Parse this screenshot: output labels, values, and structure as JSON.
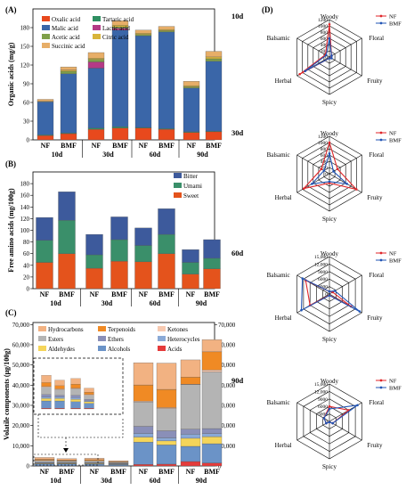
{
  "panel_labels": {
    "a": "(A)",
    "b": "(B)",
    "c": "(C)",
    "d": "(D)"
  },
  "colors": {
    "oxalic": "#e8491d",
    "malic": "#3a66a8",
    "acetic": "#7fa04a",
    "succinic": "#e7ae68",
    "tartaric": "#2f8f62",
    "lactic": "#b43a86",
    "citric": "#d8b43a",
    "bitter": "#3d5a9c",
    "umami": "#3a8f6a",
    "sweet": "#e4531c",
    "hydrocarbons": "#f2b282",
    "terpenoids": "#f08a24",
    "ketones": "#f7c9b0",
    "esters": "#b4b4b4",
    "ethers": "#8a8fb8",
    "heterocycles": "#8aa9d6",
    "aldehydes": "#f5d55a",
    "alcohols": "#6b93c7",
    "acids": "#e53b3b",
    "nf": "#e0262a",
    "bmf": "#2255b5"
  },
  "chart_data": [
    {
      "type": "bar",
      "stacked": true,
      "ylabel": "Organic acids (mg/g)",
      "ylim": [
        0,
        210
      ],
      "yticks": [
        0,
        30,
        60,
        90,
        120,
        150,
        180
      ],
      "categories": [
        "NF",
        "BMF",
        "NF",
        "BMF",
        "NF",
        "BMF",
        "NF",
        "BMF"
      ],
      "groups": [
        "10d",
        "30d",
        "60d",
        "90d"
      ],
      "legend": [
        "Oxalic acid",
        "Malic acid",
        "Acetic acid",
        "Succinic acid",
        "Tartaric acid",
        "Lactic acid",
        "Citric acid"
      ],
      "series": [
        {
          "name": "Oxalic acid",
          "values": [
            7,
            10,
            17,
            19,
            19,
            17,
            12,
            13
          ]
        },
        {
          "name": "Tartaric acid",
          "values": [
            1,
            1,
            2,
            2,
            1,
            1,
            1,
            1
          ]
        },
        {
          "name": "Malic acid",
          "values": [
            53,
            95,
            96,
            155,
            147,
            155,
            70,
            112
          ]
        },
        {
          "name": "Lactic acid",
          "values": [
            0,
            0,
            10,
            3,
            0,
            0,
            0,
            0
          ]
        },
        {
          "name": "Acetic acid",
          "values": [
            0,
            4,
            4,
            2,
            2,
            2,
            2,
            4
          ]
        },
        {
          "name": "Citric acid",
          "values": [
            1,
            2,
            2,
            3,
            2,
            2,
            2,
            3
          ]
        },
        {
          "name": "Succinic acid",
          "values": [
            3,
            5,
            9,
            7,
            5,
            5,
            7,
            9
          ]
        }
      ]
    },
    {
      "type": "bar",
      "stacked": true,
      "ylabel": "Free amino acids (mg/100g)",
      "ylim": [
        0,
        200
      ],
      "yticks": [
        0,
        20,
        40,
        60,
        80,
        100,
        120,
        140,
        160,
        180
      ],
      "categories": [
        "NF",
        "BMF",
        "NF",
        "BMF",
        "NF",
        "BMF",
        "NF",
        "BMF"
      ],
      "groups": [
        "10d",
        "30d",
        "60d",
        "90d"
      ],
      "legend": [
        "Bitter",
        "Umami",
        "Sweet"
      ],
      "series": [
        {
          "name": "Sweet",
          "values": [
            45,
            60,
            35,
            47,
            46,
            60,
            25,
            34
          ]
        },
        {
          "name": "Umami",
          "values": [
            38,
            57,
            23,
            37,
            28,
            33,
            20,
            18
          ]
        },
        {
          "name": "Bitter",
          "values": [
            39,
            49,
            35,
            39,
            30,
            44,
            22,
            32
          ]
        }
      ]
    },
    {
      "type": "bar",
      "stacked": true,
      "ylabel": "Volatile components (μg/100g)",
      "ylim": [
        0,
        71000
      ],
      "yticks": [
        0,
        10000,
        20000,
        30000,
        40000,
        50000,
        60000,
        70000
      ],
      "yticklabels": [
        "0",
        "10,000",
        "20,000",
        "30,000",
        "40,000",
        "50,000",
        "60,000",
        "70,000"
      ],
      "yticks_right": [
        0,
        10000,
        20000,
        30000,
        40000,
        50000,
        60000,
        70000
      ],
      "categories": [
        "NF",
        "BMF",
        "NF",
        "BMF",
        "NF",
        "BMF",
        "NF",
        "BMF"
      ],
      "groups": [
        "10d",
        "30d",
        "60d",
        "90d"
      ],
      "legend": [
        "Hydrocarbons",
        "Terpenoids",
        "Ketones",
        "Esters",
        "Ethers",
        "Heterocycles",
        "Aldehydes",
        "Alcohols",
        "Acids"
      ],
      "series": [
        {
          "name": "Acids",
          "values": [
            100,
            100,
            100,
            100,
            800,
            900,
            2200,
            1500
          ]
        },
        {
          "name": "Alcohols",
          "values": [
            900,
            900,
            800,
            600,
            11000,
            9500,
            7500,
            9500
          ]
        },
        {
          "name": "Aldehydes",
          "values": [
            300,
            300,
            300,
            200,
            2500,
            2000,
            4000,
            3500
          ]
        },
        {
          "name": "Heterocycles",
          "values": [
            200,
            200,
            200,
            100,
            1800,
            1500,
            2000,
            1500
          ]
        },
        {
          "name": "Ethers",
          "values": [
            300,
            200,
            300,
            200,
            3500,
            3500,
            2500,
            2500
          ]
        },
        {
          "name": "Esters",
          "values": [
            900,
            700,
            800,
            500,
            12000,
            11000,
            22000,
            28000
          ]
        },
        {
          "name": "Ketones",
          "values": [
            100,
            100,
            100,
            100,
            500,
            500,
            300,
            1000
          ]
        },
        {
          "name": "Terpenoids",
          "values": [
            500,
            400,
            500,
            300,
            8000,
            9000,
            3500,
            9000
          ]
        },
        {
          "name": "Hydrocarbons",
          "values": [
            900,
            700,
            700,
            500,
            11000,
            13000,
            8500,
            6000
          ]
        }
      ]
    },
    {
      "type": "radar",
      "title": "10d",
      "axes": [
        "Woody",
        "Floral",
        "Fruity",
        "Spicy",
        "Herbal",
        "Balsamic"
      ],
      "rticks": [
        0,
        200,
        400,
        600,
        800,
        1000,
        1200
      ],
      "rmax": 1200,
      "legend": [
        "NF",
        "BMF"
      ],
      "series": [
        {
          "name": "NF",
          "values": [
            1050,
            80,
            70,
            40,
            1100,
            150
          ]
        },
        {
          "name": "BMF",
          "values": [
            600,
            80,
            80,
            40,
            900,
            120
          ]
        }
      ]
    },
    {
      "type": "radar",
      "title": "30d",
      "axes": [
        "Woody",
        "Floral",
        "Fruity",
        "Spicy",
        "Herbal",
        "Balsamic"
      ],
      "rticks": [
        0,
        200,
        400,
        600,
        800,
        1000,
        1200
      ],
      "rmax": 1200,
      "legend": [
        "NF",
        "BMF"
      ],
      "series": [
        {
          "name": "NF",
          "values": [
            1000,
            300,
            1000,
            300,
            950,
            300
          ]
        },
        {
          "name": "BMF",
          "values": [
            650,
            150,
            650,
            250,
            650,
            200
          ]
        }
      ]
    },
    {
      "type": "radar",
      "title": "60d",
      "axes": [
        "Woody",
        "Floral",
        "Fruity",
        "Spicy",
        "Herbal",
        "Balsamic"
      ],
      "rticks": [
        0,
        3000,
        6000,
        9000,
        12000,
        15000
      ],
      "rticklabels": [
        "0",
        "3000",
        "6000",
        "9000",
        "12,000",
        "15,000"
      ],
      "rmax": 15000,
      "legend": [
        "NF",
        "BMF"
      ],
      "series": [
        {
          "name": "NF",
          "values": [
            1000,
            1500,
            10000,
            500,
            9000,
            11000
          ]
        },
        {
          "name": "BMF",
          "values": [
            1000,
            2500,
            14000,
            600,
            13000,
            12500
          ]
        }
      ]
    },
    {
      "type": "radar",
      "title": "90d",
      "axes": [
        "Woody",
        "Floral",
        "Fruity",
        "Spicy",
        "Herbal",
        "Balsamic"
      ],
      "rticks": [
        0,
        3000,
        6000,
        9000,
        12000,
        15000
      ],
      "rticklabels": [
        "0",
        "3000",
        "6000",
        "9000",
        "12,000",
        "15,000"
      ],
      "rmax": 15000,
      "legend": [
        "NF",
        "BMF"
      ],
      "series": [
        {
          "name": "NF",
          "values": [
            6000,
            9000,
            1500,
            300,
            1500,
            2500
          ]
        },
        {
          "name": "BMF",
          "values": [
            5000,
            13000,
            1500,
            300,
            1500,
            2500
          ]
        }
      ]
    }
  ]
}
